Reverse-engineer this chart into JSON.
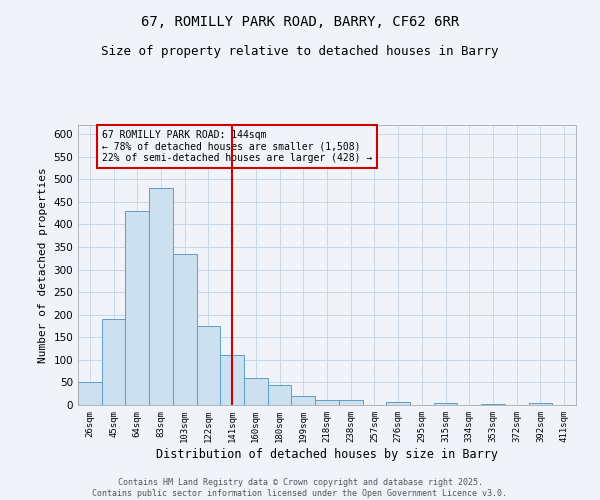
{
  "title_line1": "67, ROMILLY PARK ROAD, BARRY, CF62 6RR",
  "title_line2": "Size of property relative to detached houses in Barry",
  "xlabel": "Distribution of detached houses by size in Barry",
  "ylabel": "Number of detached properties",
  "bin_labels": [
    "26sqm",
    "45sqm",
    "64sqm",
    "83sqm",
    "103sqm",
    "122sqm",
    "141sqm",
    "160sqm",
    "180sqm",
    "199sqm",
    "218sqm",
    "238sqm",
    "257sqm",
    "276sqm",
    "295sqm",
    "315sqm",
    "334sqm",
    "353sqm",
    "372sqm",
    "392sqm",
    "411sqm"
  ],
  "bar_values": [
    50,
    190,
    430,
    480,
    335,
    175,
    110,
    60,
    45,
    20,
    10,
    10,
    0,
    7,
    0,
    5,
    0,
    2,
    0,
    4,
    0
  ],
  "bar_color": "#cde0f0",
  "bar_edge_color": "#5a9ec9",
  "grid_color": "#c8d8e8",
  "vline_x": 6,
  "vline_color": "#cc0000",
  "annotation_text": "67 ROMILLY PARK ROAD: 144sqm\n← 78% of detached houses are smaller (1,508)\n22% of semi-detached houses are larger (428) →",
  "annotation_box_color": "#cc0000",
  "ylim": [
    0,
    620
  ],
  "yticks": [
    0,
    50,
    100,
    150,
    200,
    250,
    300,
    350,
    400,
    450,
    500,
    550,
    600
  ],
  "footer_text": "Contains HM Land Registry data © Crown copyright and database right 2025.\nContains public sector information licensed under the Open Government Licence v3.0.",
  "bg_color": "#f0f4fa"
}
